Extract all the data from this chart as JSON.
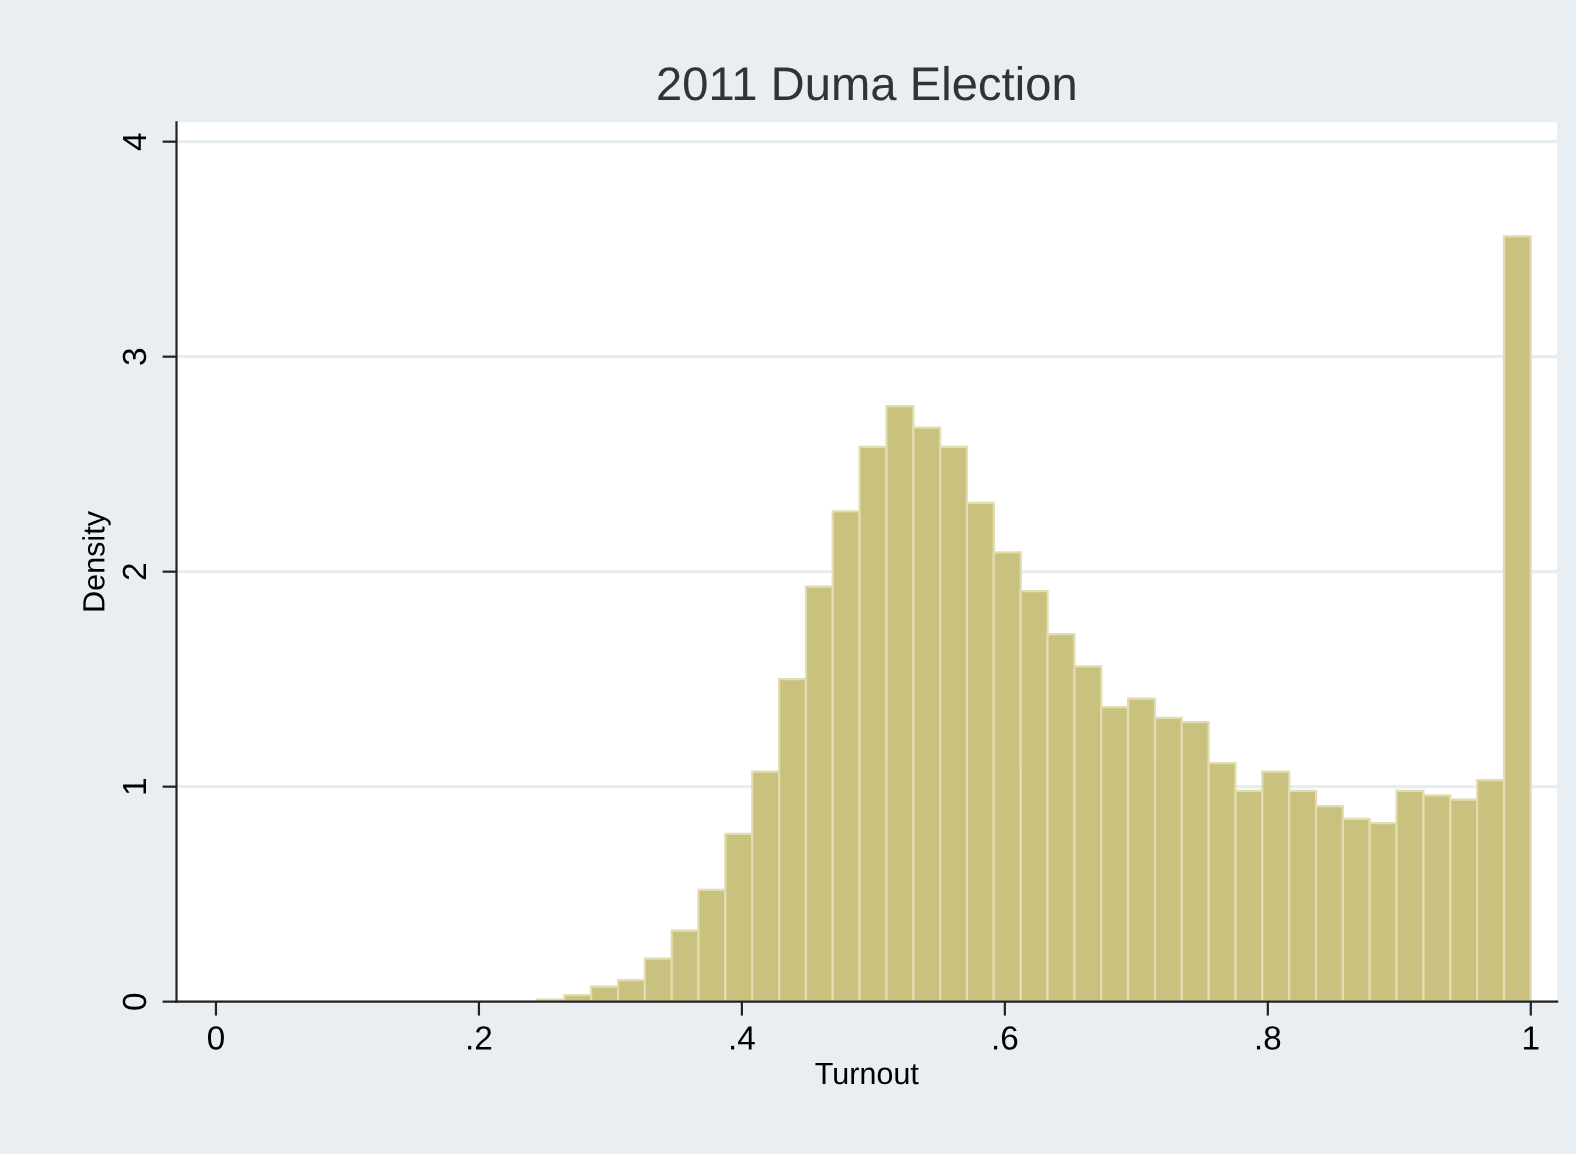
{
  "chart_data": {
    "type": "histogram",
    "title": "2011 Duma Election",
    "xlabel": "Turnout",
    "ylabel": "Density",
    "bins": [
      0.2445,
      0.2649,
      0.2853,
      0.3058,
      0.3262,
      0.3466,
      0.367,
      0.3874,
      0.4079,
      0.4283,
      0.4487,
      0.4691,
      0.4895,
      0.51,
      0.5304,
      0.5508,
      0.5712,
      0.5916,
      0.6121,
      0.6325,
      0.6529,
      0.6733,
      0.6937,
      0.7142,
      0.7346,
      0.755,
      0.7754,
      0.7958,
      0.8163,
      0.8367,
      0.8571,
      0.8775,
      0.8979,
      0.9184,
      0.9388,
      0.9592,
      0.9796,
      1.0
    ],
    "values": [
      0.01,
      0.03,
      0.07,
      0.1,
      0.2,
      0.33,
      0.52,
      0.78,
      1.07,
      1.5,
      1.93,
      2.28,
      2.58,
      2.77,
      2.67,
      2.58,
      2.32,
      2.09,
      1.91,
      1.71,
      1.56,
      1.37,
      1.41,
      1.32,
      1.3,
      1.11,
      0.98,
      1.07,
      0.98,
      0.91,
      0.85,
      0.83,
      0.98,
      0.96,
      0.94,
      1.03,
      3.56
    ],
    "color": "#c9c27f",
    "xlim": [
      -0.03,
      1.02
    ],
    "ylim": [
      0,
      4.09
    ],
    "xticks": [
      {
        "value": 0,
        "label": "0"
      },
      {
        "value": 0.2,
        "label": ".2"
      },
      {
        "value": 0.4,
        "label": ".4"
      },
      {
        "value": 0.6,
        "label": ".6"
      },
      {
        "value": 0.8,
        "label": ".8"
      },
      {
        "value": 1,
        "label": "1"
      }
    ],
    "yticks": [
      0,
      1,
      2,
      3,
      4
    ],
    "grid": "y"
  }
}
